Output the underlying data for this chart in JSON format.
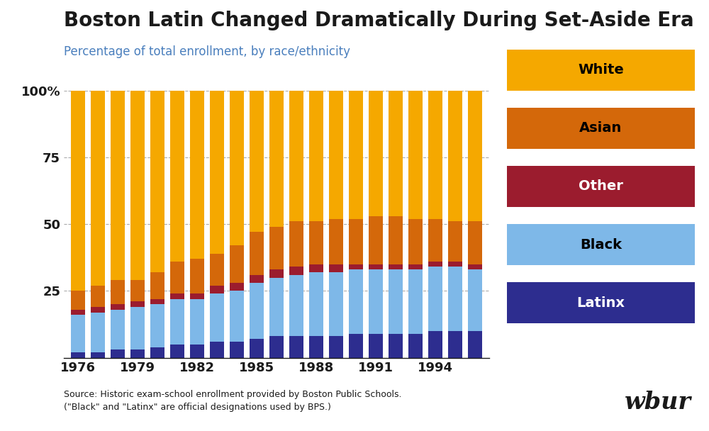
{
  "title": "Boston Latin Changed Dramatically During Set-Aside Era",
  "subtitle": "Percentage of total enrollment, by race/ethnicity",
  "source_line1": "Source: Historic exam-school enrollment provided by Boston Public Schools.",
  "source_line2": "(\"Black\" and \"Latinx\" are official designations used by BPS.)",
  "watermark": "wbur",
  "years": [
    1976,
    1977,
    1978,
    1979,
    1980,
    1981,
    1982,
    1983,
    1984,
    1985,
    1986,
    1987,
    1988,
    1989,
    1990,
    1991,
    1992,
    1993,
    1994,
    1995,
    1996
  ],
  "categories": [
    "Latinx",
    "Black",
    "Other",
    "Asian",
    "White"
  ],
  "colors": [
    "#2d2d8f",
    "#7eb8e8",
    "#9b1c2e",
    "#d4680a",
    "#f5a800"
  ],
  "data": {
    "Latinx": [
      2,
      2,
      3,
      3,
      4,
      5,
      5,
      6,
      6,
      7,
      8,
      8,
      8,
      8,
      9,
      9,
      9,
      9,
      10,
      10,
      10
    ],
    "Black": [
      14,
      15,
      15,
      16,
      16,
      17,
      17,
      18,
      19,
      21,
      22,
      23,
      24,
      24,
      24,
      24,
      24,
      24,
      24,
      24,
      23
    ],
    "Other": [
      2,
      2,
      2,
      2,
      2,
      2,
      2,
      3,
      3,
      3,
      3,
      3,
      3,
      3,
      2,
      2,
      2,
      2,
      2,
      2,
      2
    ],
    "Asian": [
      7,
      8,
      9,
      8,
      10,
      12,
      13,
      12,
      14,
      16,
      16,
      17,
      16,
      17,
      17,
      18,
      18,
      17,
      16,
      15,
      16
    ],
    "White": [
      75,
      73,
      71,
      71,
      68,
      64,
      63,
      61,
      58,
      53,
      51,
      49,
      49,
      48,
      48,
      47,
      47,
      48,
      48,
      49,
      49
    ]
  },
  "ylim": [
    0,
    100
  ],
  "yticks": [
    0,
    25,
    50,
    75,
    100
  ],
  "ytick_labels": [
    "",
    "25",
    "50",
    "75",
    "100%"
  ],
  "background_color": "#ffffff",
  "grid_color": "#aaaaaa",
  "title_color": "#1a1a1a",
  "subtitle_color": "#4a7fbd",
  "bar_width": 0.72,
  "legend_fontsize": 14,
  "title_fontsize": 20,
  "subtitle_fontsize": 12,
  "axis_fontsize": 13
}
